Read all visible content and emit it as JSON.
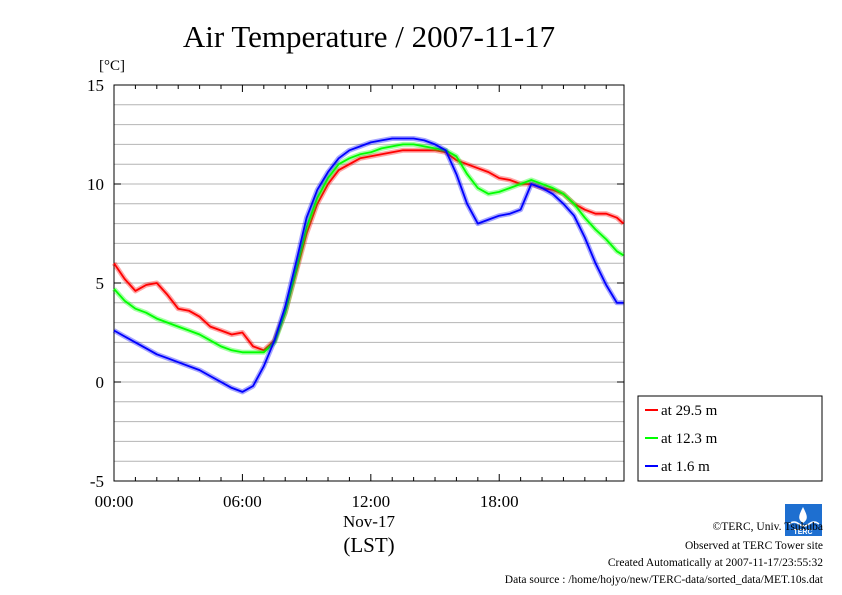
{
  "chart_data": {
    "type": "line",
    "title": "Air Temperature / 2007-11-17",
    "ylabel": "[°C]",
    "xlabel_date": "Nov-17",
    "xlabel_zone": "(LST)",
    "ylim": [
      -5,
      15
    ],
    "yticks": [
      "15",
      "10",
      "5",
      "0",
      "-5"
    ],
    "ytick_values": [
      15,
      10,
      5,
      0,
      -5
    ],
    "xlim": [
      0,
      23.83
    ],
    "xticks": [
      "00:00",
      "06:00",
      "12:00",
      "18:00"
    ],
    "xtick_values": [
      0,
      6,
      12,
      18
    ],
    "grid": true,
    "legend_position": "right",
    "series": [
      {
        "name": "at 29.5 m",
        "color": "#ff0000",
        "x": [
          0,
          0.5,
          1,
          1.5,
          2,
          2.5,
          3,
          3.5,
          4,
          4.5,
          5,
          5.5,
          6,
          6.5,
          7,
          7.5,
          8,
          8.5,
          9,
          9.5,
          10,
          10.5,
          11,
          11.5,
          12,
          12.5,
          13,
          13.5,
          14,
          14.5,
          15,
          15.5,
          16,
          16.5,
          17,
          17.5,
          18,
          18.5,
          19,
          19.5,
          20,
          20.5,
          21,
          21.5,
          22,
          22.5,
          23,
          23.5,
          23.8
        ],
        "y": [
          6.0,
          5.2,
          4.6,
          4.9,
          5.0,
          4.4,
          3.7,
          3.6,
          3.3,
          2.8,
          2.6,
          2.4,
          2.5,
          1.8,
          1.6,
          2.1,
          3.5,
          5.5,
          7.5,
          9.0,
          10.0,
          10.7,
          11.0,
          11.3,
          11.4,
          11.5,
          11.6,
          11.7,
          11.7,
          11.7,
          11.7,
          11.6,
          11.2,
          11.0,
          10.8,
          10.6,
          10.3,
          10.2,
          10.0,
          10.0,
          9.8,
          9.7,
          9.5,
          9.0,
          8.7,
          8.5,
          8.5,
          8.3,
          8.0
        ]
      },
      {
        "name": "at 12.3 m",
        "color": "#00ff00",
        "x": [
          0,
          0.5,
          1,
          1.5,
          2,
          2.5,
          3,
          3.5,
          4,
          4.5,
          5,
          5.5,
          6,
          6.5,
          7,
          7.5,
          8,
          8.5,
          9,
          9.5,
          10,
          10.5,
          11,
          11.5,
          12,
          12.5,
          13,
          13.5,
          14,
          14.5,
          15,
          15.5,
          16,
          16.5,
          17,
          17.5,
          18,
          18.5,
          19,
          19.5,
          20,
          20.5,
          21,
          21.5,
          22,
          22.5,
          23,
          23.5,
          23.8
        ],
        "y": [
          4.7,
          4.1,
          3.7,
          3.5,
          3.2,
          3.0,
          2.8,
          2.6,
          2.4,
          2.1,
          1.8,
          1.6,
          1.5,
          1.5,
          1.5,
          2.0,
          3.5,
          5.6,
          7.8,
          9.3,
          10.3,
          11.0,
          11.3,
          11.5,
          11.6,
          11.8,
          11.9,
          12.0,
          12.0,
          11.9,
          11.8,
          11.7,
          11.4,
          10.5,
          9.8,
          9.5,
          9.6,
          9.8,
          10.0,
          10.2,
          10.0,
          9.8,
          9.5,
          9.0,
          8.3,
          7.7,
          7.2,
          6.6,
          6.4
        ]
      },
      {
        "name": "at 1.6 m",
        "color": "#0000ff",
        "x": [
          0,
          0.5,
          1,
          1.5,
          2,
          2.5,
          3,
          3.5,
          4,
          4.5,
          5,
          5.5,
          6,
          6.5,
          7,
          7.5,
          8,
          8.5,
          9,
          9.5,
          10,
          10.5,
          11,
          11.5,
          12,
          12.5,
          13,
          13.5,
          14,
          14.5,
          15,
          15.5,
          16,
          16.5,
          17,
          17.5,
          18,
          18.5,
          19,
          19.5,
          20,
          20.5,
          21,
          21.5,
          22,
          22.5,
          23,
          23.5,
          23.8
        ],
        "y": [
          2.6,
          2.3,
          2.0,
          1.7,
          1.4,
          1.2,
          1.0,
          0.8,
          0.6,
          0.3,
          0.0,
          -0.3,
          -0.5,
          -0.2,
          0.8,
          2.1,
          3.8,
          6.0,
          8.3,
          9.7,
          10.6,
          11.3,
          11.7,
          11.9,
          12.1,
          12.2,
          12.3,
          12.3,
          12.3,
          12.2,
          12.0,
          11.7,
          10.5,
          9.0,
          8.0,
          8.2,
          8.4,
          8.5,
          8.7,
          10.0,
          9.8,
          9.5,
          9.0,
          8.4,
          7.3,
          6.0,
          4.9,
          4.0,
          4.0
        ]
      }
    ]
  },
  "credits": {
    "copyright": "©TERC, Univ. Tsukuba",
    "observed": "Observed at TERC Tower site",
    "created": "Created Automatically at 2007-11-17/23:55:32",
    "source": "Data source : /home/hojyo/new/TERC-data/sorted_data/MET.10s.dat",
    "logo_text": "TERC"
  }
}
